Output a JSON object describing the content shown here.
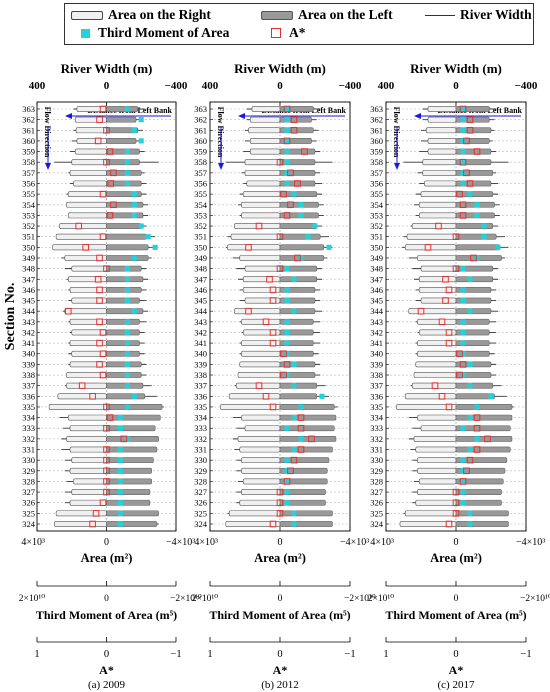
{
  "legend": {
    "area_right": "Area on the Right",
    "area_left": "Area on the Left",
    "river_width": "River Width",
    "third_moment": "Third Moment of Area",
    "astar": "A*"
  },
  "colors": {
    "area_right_fill": "#f0f0f0",
    "area_left_fill": "#999999",
    "third_moment": "#22d3dd",
    "astar": "#e53030",
    "arrow": "#1a1adb"
  },
  "common": {
    "ylabel": "Section No.",
    "annotation_distance": "Distance from Left Bank",
    "annotation_flow": "Flow Direction",
    "width_axis": {
      "label": "River Width (m)",
      "ticks": [
        "400",
        "0",
        "−400"
      ]
    },
    "area_axis": {
      "label": "Area (m²)",
      "ticks": [
        "4×10³",
        "0",
        "−4×10³"
      ]
    },
    "moment_axis": {
      "label": "Third Moment of Area (m⁵)",
      "ticks": [
        "2×10¹⁰",
        "0",
        "−2×10¹⁰"
      ]
    },
    "astar_axis": {
      "label": "A*",
      "ticks": [
        "1",
        "0",
        "−1"
      ]
    }
  },
  "chart_data": [
    {
      "type": "bar",
      "panel_label": "(a) 2009",
      "sections": [
        363,
        362,
        361,
        360,
        359,
        358,
        357,
        356,
        355,
        354,
        353,
        352,
        351,
        350,
        349,
        348,
        347,
        346,
        345,
        344,
        343,
        342,
        341,
        340,
        339,
        338,
        337,
        336,
        335,
        334,
        333,
        332,
        331,
        330,
        329,
        328,
        327,
        326,
        325,
        324
      ],
      "area_right": [
        1700,
        1800,
        1750,
        1700,
        1800,
        2000,
        2100,
        1900,
        2200,
        2300,
        2200,
        2700,
        2900,
        3100,
        2400,
        2000,
        2200,
        2100,
        2000,
        2400,
        2100,
        2000,
        2100,
        2000,
        2100,
        2300,
        2300,
        2800,
        3300,
        2200,
        2100,
        2300,
        2100,
        2000,
        2100,
        1900,
        2000,
        2100,
        2900,
        3000
      ],
      "area_left": [
        -1800,
        -1700,
        -1800,
        -1700,
        -1900,
        -1900,
        -2000,
        -2000,
        -2000,
        -2100,
        -2100,
        -2000,
        -2300,
        -2400,
        -2400,
        -2000,
        -2100,
        -2000,
        -1900,
        -2100,
        -1900,
        -1900,
        -1900,
        -1900,
        -2000,
        -2000,
        -2100,
        -2200,
        -3200,
        -3100,
        -2800,
        -3000,
        -2900,
        -2700,
        -2600,
        -2600,
        -2500,
        -2500,
        -3000,
        -2900
      ],
      "river_width_left": [
        -220,
        -210,
        -210,
        -200,
        -220,
        -300,
        -220,
        -230,
        -230,
        -240,
        -240,
        -230,
        -280,
        -290,
        -260,
        -230,
        -240,
        -230,
        -230,
        -240,
        -230,
        -220,
        -220,
        -220,
        -230,
        -230,
        -260,
        -290,
        -330,
        -290,
        -260,
        -280,
        -270,
        -260,
        -260,
        -250,
        -240,
        -240,
        -300,
        -300
      ],
      "river_width_right": [
        190,
        180,
        190,
        200,
        210,
        300,
        220,
        210,
        230,
        230,
        220,
        260,
        290,
        300,
        260,
        240,
        230,
        220,
        220,
        250,
        220,
        210,
        220,
        220,
        220,
        230,
        240,
        250,
        300,
        270,
        250,
        260,
        260,
        240,
        240,
        230,
        240,
        240,
        290,
        290
      ],
      "third_moment": [
        -0.3,
        -0.5,
        -0.4,
        -0.5,
        -0.3,
        -0.3,
        -0.3,
        -0.3,
        -0.4,
        -0.4,
        -0.4,
        -0.5,
        -0.6,
        -0.7,
        -0.4,
        -0.3,
        -0.3,
        -0.3,
        -0.3,
        -0.4,
        -0.3,
        -0.3,
        -0.3,
        -0.3,
        -0.3,
        -0.3,
        -0.3,
        -0.4,
        -0.3,
        -0.2,
        -0.2,
        -0.3,
        -0.2,
        -0.2,
        -0.2,
        -0.2,
        -0.2,
        -0.2,
        -0.2,
        -0.2
      ],
      "astar": [
        0.05,
        0.1,
        0.0,
        0.12,
        -0.05,
        0.0,
        -0.1,
        -0.06,
        0.05,
        -0.1,
        -0.05,
        0.4,
        0.05,
        0.3,
        0.1,
        0.0,
        0.12,
        0.1,
        0.1,
        0.55,
        0.1,
        0.05,
        0.1,
        0.05,
        0.1,
        0.05,
        0.35,
        0.2,
        0.0,
        -0.05,
        0.0,
        -0.25,
        0.0,
        0.0,
        0.0,
        0.0,
        0.0,
        0.05,
        0.15,
        0.2
      ]
    },
    {
      "type": "bar",
      "panel_label": "(b) 2012",
      "sections": [
        363,
        362,
        361,
        360,
        359,
        358,
        357,
        356,
        355,
        354,
        353,
        352,
        351,
        350,
        349,
        348,
        347,
        346,
        345,
        344,
        343,
        342,
        341,
        340,
        339,
        338,
        337,
        336,
        335,
        334,
        333,
        332,
        331,
        330,
        329,
        328,
        327,
        326,
        325,
        324
      ],
      "area_right": [
        1600,
        1700,
        1800,
        1700,
        1700,
        2000,
        2000,
        1900,
        2100,
        2200,
        2200,
        2600,
        2800,
        3000,
        2300,
        2000,
        2100,
        2100,
        2000,
        2600,
        2200,
        2100,
        2200,
        2200,
        2300,
        2400,
        2500,
        2900,
        3400,
        2200,
        2000,
        2400,
        2300,
        2200,
        2200,
        2100,
        2200,
        2300,
        2900,
        3100
      ],
      "area_left": [
        -1900,
        -1800,
        -1900,
        -1800,
        -2000,
        -2000,
        -2000,
        -2000,
        -2100,
        -2200,
        -2200,
        -2100,
        -2300,
        -2500,
        -2500,
        -2100,
        -2100,
        -2000,
        -2000,
        -2000,
        -1900,
        -1900,
        -1900,
        -1900,
        -2000,
        -2000,
        -2100,
        -2100,
        -3100,
        -3200,
        -3100,
        -3200,
        -3000,
        -2800,
        -2700,
        -2700,
        -2600,
        -2600,
        -3000,
        -3000
      ],
      "river_width_left": [
        -230,
        -210,
        -220,
        -210,
        -230,
        -300,
        -230,
        -240,
        -240,
        -250,
        -250,
        -240,
        -280,
        -300,
        -270,
        -240,
        -240,
        -230,
        -230,
        -240,
        -230,
        -230,
        -230,
        -220,
        -230,
        -230,
        -260,
        -280,
        -330,
        -300,
        -280,
        -290,
        -280,
        -270,
        -270,
        -260,
        -250,
        -250,
        -300,
        -300
      ],
      "river_width_right": [
        190,
        190,
        200,
        200,
        210,
        310,
        220,
        210,
        230,
        240,
        230,
        260,
        300,
        310,
        270,
        250,
        240,
        230,
        230,
        260,
        230,
        220,
        230,
        230,
        230,
        240,
        260,
        280,
        320,
        270,
        250,
        270,
        260,
        250,
        250,
        240,
        250,
        250,
        300,
        310
      ],
      "third_moment": [
        -0.1,
        -0.1,
        -0.1,
        -0.1,
        -0.1,
        -0.1,
        -0.1,
        -0.1,
        -0.2,
        -0.3,
        -0.3,
        -0.5,
        -0.4,
        -0.7,
        -0.3,
        -0.1,
        -0.2,
        -0.1,
        -0.1,
        -0.2,
        -0.1,
        -0.1,
        -0.1,
        -0.1,
        -0.2,
        -0.1,
        -0.2,
        -0.6,
        -0.3,
        -0.2,
        -0.1,
        -0.3,
        -0.2,
        -0.1,
        -0.1,
        -0.1,
        -0.1,
        -0.1,
        -0.2,
        -0.2
      ],
      "astar": [
        -0.1,
        -0.2,
        -0.2,
        -0.1,
        -0.35,
        0.0,
        -0.15,
        -0.25,
        -0.05,
        -0.15,
        -0.1,
        0.3,
        0.0,
        0.45,
        -0.25,
        0.0,
        0.15,
        0.1,
        0.1,
        0.45,
        0.2,
        0.1,
        0.1,
        -0.05,
        -0.1,
        -0.05,
        0.3,
        0.2,
        0.1,
        -0.3,
        -0.3,
        -0.45,
        -0.3,
        -0.2,
        -0.15,
        -0.1,
        0.0,
        0.0,
        0.0,
        0.1
      ]
    },
    {
      "type": "bar",
      "panel_label": "(c) 2017",
      "sections": [
        363,
        362,
        361,
        360,
        359,
        358,
        357,
        356,
        355,
        354,
        353,
        352,
        351,
        350,
        349,
        348,
        347,
        346,
        345,
        344,
        343,
        342,
        341,
        340,
        339,
        338,
        337,
        336,
        335,
        334,
        333,
        332,
        331,
        330,
        329,
        328,
        327,
        326,
        325,
        324
      ],
      "area_right": [
        1600,
        1600,
        1700,
        1600,
        1600,
        1900,
        1900,
        1800,
        2000,
        2100,
        2100,
        2500,
        2800,
        2900,
        2200,
        2000,
        2100,
        2100,
        2000,
        2700,
        2200,
        2100,
        2200,
        2200,
        2300,
        2400,
        2500,
        2900,
        3400,
        2200,
        2000,
        2400,
        2300,
        2200,
        2200,
        2100,
        2200,
        2300,
        2900,
        3200
      ],
      "area_left": [
        -1900,
        -1900,
        -2000,
        -1900,
        -2000,
        -2000,
        -2100,
        -2000,
        -2100,
        -2200,
        -2200,
        -2100,
        -2300,
        -2500,
        -2600,
        -2100,
        -2100,
        -2000,
        -2000,
        -2000,
        -1900,
        -1900,
        -1900,
        -1900,
        -2000,
        -2000,
        -2100,
        -2200,
        -3200,
        -3200,
        -3100,
        -3200,
        -3100,
        -2900,
        -2800,
        -2700,
        -2600,
        -2600,
        -3000,
        -3000
      ],
      "river_width_left": [
        -230,
        -220,
        -220,
        -210,
        -230,
        -300,
        -230,
        -240,
        -240,
        -250,
        -250,
        -240,
        -280,
        -300,
        -280,
        -240,
        -240,
        -230,
        -230,
        -240,
        -230,
        -230,
        -230,
        -220,
        -230,
        -230,
        -260,
        -290,
        -330,
        -300,
        -280,
        -290,
        -280,
        -270,
        -270,
        -260,
        -250,
        -250,
        -300,
        -300
      ],
      "river_width_right": [
        190,
        190,
        200,
        200,
        210,
        300,
        220,
        210,
        230,
        240,
        230,
        260,
        300,
        310,
        270,
        250,
        240,
        230,
        230,
        260,
        230,
        220,
        230,
        230,
        230,
        240,
        260,
        280,
        320,
        270,
        250,
        270,
        260,
        250,
        250,
        240,
        250,
        250,
        300,
        310
      ],
      "third_moment": [
        -0.1,
        -0.1,
        -0.1,
        -0.1,
        -0.1,
        -0.1,
        -0.1,
        -0.1,
        -0.2,
        -0.3,
        -0.3,
        -0.4,
        -0.4,
        -0.6,
        -0.3,
        -0.1,
        -0.2,
        -0.1,
        -0.1,
        -0.2,
        -0.1,
        -0.1,
        -0.1,
        -0.1,
        -0.2,
        -0.1,
        -0.2,
        -0.5,
        -0.3,
        -0.2,
        -0.1,
        -0.3,
        -0.2,
        -0.1,
        -0.1,
        -0.1,
        -0.1,
        -0.1,
        -0.2,
        -0.2
      ],
      "astar": [
        -0.1,
        -0.2,
        -0.2,
        -0.15,
        -0.3,
        -0.1,
        -0.15,
        -0.2,
        -0.05,
        -0.1,
        -0.1,
        0.25,
        0.0,
        0.4,
        -0.25,
        0.0,
        0.15,
        0.1,
        0.15,
        0.5,
        0.2,
        0.1,
        0.1,
        -0.05,
        -0.1,
        -0.05,
        0.3,
        0.2,
        0.1,
        -0.3,
        -0.3,
        -0.45,
        -0.3,
        -0.2,
        -0.15,
        -0.1,
        0.0,
        0.0,
        0.0,
        0.1
      ]
    }
  ]
}
